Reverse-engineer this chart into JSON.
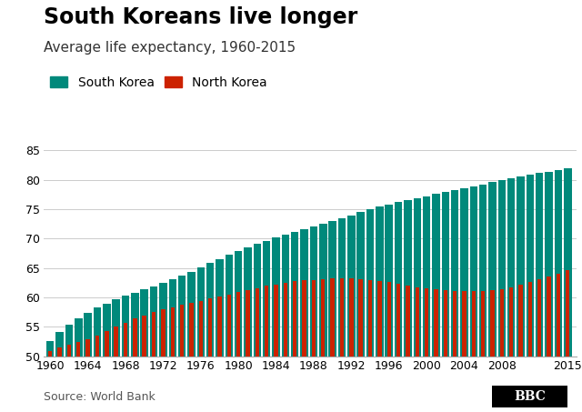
{
  "title": "South Koreans live longer",
  "subtitle": "Average life expectancy, 1960-2015",
  "legend": [
    "South Korea",
    "North Korea"
  ],
  "colors": [
    "#00897B",
    "#CC2200"
  ],
  "years": [
    1960,
    1961,
    1962,
    1963,
    1964,
    1965,
    1966,
    1967,
    1968,
    1969,
    1970,
    1971,
    1972,
    1973,
    1974,
    1975,
    1976,
    1977,
    1978,
    1979,
    1980,
    1981,
    1982,
    1983,
    1984,
    1985,
    1986,
    1987,
    1988,
    1989,
    1990,
    1991,
    1992,
    1993,
    1994,
    1995,
    1996,
    1997,
    1998,
    1999,
    2000,
    2001,
    2002,
    2003,
    2004,
    2005,
    2006,
    2007,
    2008,
    2009,
    2010,
    2011,
    2012,
    2013,
    2014,
    2015
  ],
  "south_korea": [
    52.54,
    54.08,
    55.37,
    56.48,
    57.44,
    58.27,
    59.01,
    59.67,
    60.26,
    60.82,
    61.36,
    61.91,
    62.48,
    63.09,
    63.74,
    64.42,
    65.12,
    65.82,
    66.52,
    67.21,
    67.87,
    68.5,
    69.1,
    69.65,
    70.16,
    70.64,
    71.1,
    71.56,
    72.02,
    72.48,
    72.96,
    73.46,
    73.97,
    74.49,
    74.98,
    75.42,
    75.82,
    76.19,
    76.54,
    76.88,
    77.2,
    77.6,
    77.9,
    78.2,
    78.6,
    78.9,
    79.2,
    79.6,
    80.0,
    80.3,
    80.6,
    80.9,
    81.2,
    81.4,
    81.7,
    82.0
  ],
  "north_korea": [
    50.96,
    51.47,
    51.97,
    52.47,
    52.97,
    53.6,
    54.3,
    55.0,
    55.72,
    56.39,
    56.99,
    57.51,
    57.97,
    58.37,
    58.74,
    59.09,
    59.44,
    59.8,
    60.17,
    60.55,
    60.92,
    61.28,
    61.63,
    61.96,
    62.26,
    62.52,
    62.73,
    62.9,
    63.03,
    63.13,
    63.2,
    63.23,
    63.21,
    63.13,
    63.0,
    62.81,
    62.58,
    62.32,
    62.05,
    61.79,
    61.55,
    61.35,
    61.19,
    61.08,
    61.03,
    61.04,
    61.11,
    61.25,
    61.47,
    61.77,
    62.15,
    62.58,
    63.06,
    63.57,
    64.1,
    64.63
  ],
  "ylim": [
    50,
    85
  ],
  "yticks": [
    50,
    55,
    60,
    65,
    70,
    75,
    80,
    85
  ],
  "xticks": [
    1960,
    1964,
    1968,
    1972,
    1976,
    1980,
    1984,
    1988,
    1992,
    1996,
    2000,
    2004,
    2008,
    2015
  ],
  "bg_color": "#FFFFFF",
  "grid_color": "#CCCCCC",
  "source_text": "Source: World Bank",
  "bbc_text": "BBC",
  "title_fontsize": 17,
  "subtitle_fontsize": 11,
  "legend_fontsize": 10,
  "tick_fontsize": 9
}
